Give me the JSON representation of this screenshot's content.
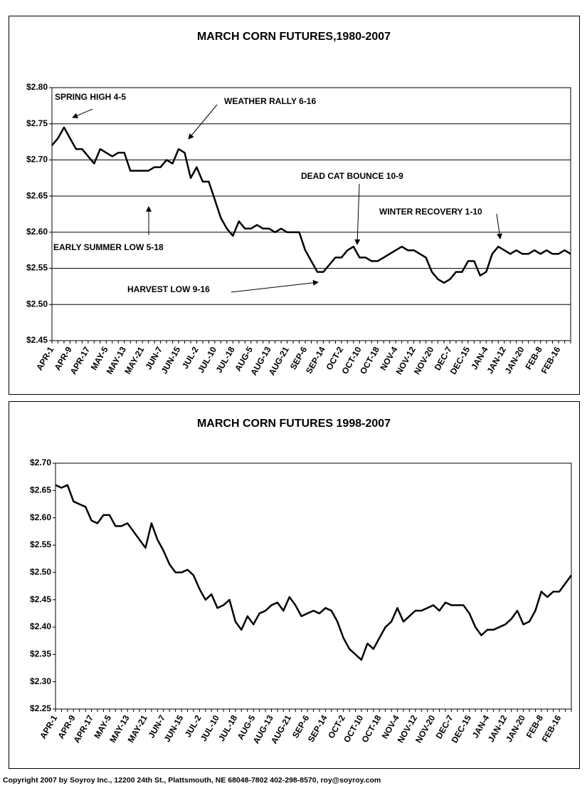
{
  "chart_data": [
    {
      "type": "line",
      "title": "MARCH CORN FUTURES,1980-2007",
      "categories": [
        "APR-1",
        null,
        null,
        "APR-9",
        null,
        null,
        "APR-17",
        null,
        null,
        "MAY-5",
        null,
        null,
        "MAY-13",
        null,
        null,
        "MAY-21",
        null,
        null,
        "JUN-7",
        null,
        null,
        "JUN-15",
        null,
        null,
        "JUL-2",
        null,
        null,
        "JUL-10",
        null,
        null,
        "JUL-18",
        null,
        null,
        "AUG-5",
        null,
        null,
        "AUG-13",
        null,
        null,
        "AUG-21",
        null,
        null,
        "SEP-6",
        null,
        null,
        "SEP-14",
        null,
        null,
        "OCT-2",
        null,
        null,
        "OCT-10",
        null,
        null,
        "OCT-18",
        null,
        null,
        "NOV-4",
        null,
        null,
        "NOV-12",
        null,
        null,
        "NOV-20",
        null,
        null,
        "DEC-7",
        null,
        null,
        "DEC-15",
        null,
        null,
        "JAN-4",
        null,
        null,
        "JAN-12",
        null,
        null,
        "JAN-20",
        null,
        null,
        "FEB-8",
        null,
        null,
        "FEB-16",
        null,
        null
      ],
      "series": [
        {
          "name": "March corn",
          "color": "#000000",
          "values": [
            2.72,
            2.73,
            2.745,
            2.73,
            2.715,
            2.715,
            2.705,
            2.695,
            2.715,
            2.71,
            2.705,
            2.71,
            2.71,
            2.685,
            2.685,
            2.685,
            2.685,
            2.69,
            2.69,
            2.7,
            2.695,
            2.715,
            2.71,
            2.675,
            2.69,
            2.67,
            2.67,
            2.645,
            2.62,
            2.605,
            2.595,
            2.615,
            2.605,
            2.605,
            2.61,
            2.605,
            2.605,
            2.6,
            2.605,
            2.6,
            2.6,
            2.6,
            2.575,
            2.56,
            2.545,
            2.545,
            2.555,
            2.565,
            2.565,
            2.575,
            2.58,
            2.565,
            2.565,
            2.56,
            2.56,
            2.565,
            2.57,
            2.575,
            2.58,
            2.575,
            2.575,
            2.57,
            2.565,
            2.545,
            2.535,
            2.53,
            2.535,
            2.545,
            2.545,
            2.56,
            2.56,
            2.54,
            2.545,
            2.57,
            2.58,
            2.575,
            2.57,
            2.575,
            2.57,
            2.57,
            2.575,
            2.57,
            2.575,
            2.57,
            2.57,
            2.575,
            2.57
          ]
        }
      ],
      "ylim": [
        2.45,
        2.8
      ],
      "yticks": [
        {
          "value": 2.45,
          "label": "$2.45"
        },
        {
          "value": 2.5,
          "label": "$2.50"
        },
        {
          "value": 2.55,
          "label": "$2.55"
        },
        {
          "value": 2.6,
          "label": "$2.60"
        },
        {
          "value": 2.65,
          "label": "$2.65"
        },
        {
          "value": 2.7,
          "label": "$2.70"
        },
        {
          "value": 2.75,
          "label": "$2.75"
        },
        {
          "value": 2.8,
          "label": "$2.80"
        }
      ],
      "grid": true,
      "annotations": [
        "SPRING HIGH 4-5",
        "WEATHER RALLY 6-16",
        "DEAD CAT BOUNCE 10-9",
        "WINTER RECOVERY 1-10",
        "EARLY SUMMER LOW 5-18",
        "HARVEST LOW  9-16"
      ]
    },
    {
      "type": "line",
      "title": "MARCH CORN FUTURES  1998-2007",
      "categories": [
        "APR-1",
        null,
        null,
        "APR-9",
        null,
        null,
        "APR-17",
        null,
        null,
        "MAY-5",
        null,
        null,
        "MAY-13",
        null,
        null,
        "MAY-21",
        null,
        null,
        "JUN-7",
        null,
        null,
        "JUN-15",
        null,
        null,
        "JUL-2",
        null,
        null,
        "JUL-10",
        null,
        null,
        "JUL-18",
        null,
        null,
        "AUG-5",
        null,
        null,
        "AUG-13",
        null,
        null,
        "AUG-21",
        null,
        null,
        "SEP-6",
        null,
        null,
        "SEP-14",
        null,
        null,
        "OCT-2",
        null,
        null,
        "OCT-10",
        null,
        null,
        "OCT-18",
        null,
        null,
        "NOV-4",
        null,
        null,
        "NOV-12",
        null,
        null,
        "NOV-20",
        null,
        null,
        "DEC-7",
        null,
        null,
        "DEC-15",
        null,
        null,
        "JAN-4",
        null,
        null,
        "JAN-12",
        null,
        null,
        "JAN-20",
        null,
        null,
        "FEB-8",
        null,
        null,
        "FEB-16",
        null,
        null
      ],
      "series": [
        {
          "name": "March corn",
          "color": "#000000",
          "values": [
            2.66,
            2.655,
            2.66,
            2.63,
            2.625,
            2.62,
            2.595,
            2.59,
            2.605,
            2.605,
            2.585,
            2.585,
            2.59,
            2.575,
            2.56,
            2.545,
            2.59,
            2.56,
            2.54,
            2.515,
            2.5,
            2.5,
            2.505,
            2.495,
            2.47,
            2.45,
            2.46,
            2.435,
            2.44,
            2.45,
            2.41,
            2.395,
            2.42,
            2.405,
            2.425,
            2.43,
            2.44,
            2.445,
            2.43,
            2.455,
            2.44,
            2.42,
            2.425,
            2.43,
            2.425,
            2.435,
            2.43,
            2.41,
            2.38,
            2.36,
            2.35,
            2.34,
            2.37,
            2.36,
            2.38,
            2.4,
            2.41,
            2.435,
            2.41,
            2.42,
            2.43,
            2.43,
            2.435,
            2.44,
            2.43,
            2.445,
            2.44,
            2.44,
            2.44,
            2.425,
            2.4,
            2.385,
            2.395,
            2.395,
            2.4,
            2.405,
            2.415,
            2.43,
            2.405,
            2.41,
            2.43,
            2.465,
            2.455,
            2.465,
            2.465,
            2.48,
            2.495
          ]
        }
      ],
      "ylim": [
        2.25,
        2.7
      ],
      "yticks": [
        {
          "value": 2.25,
          "label": "$2.25"
        },
        {
          "value": 2.3,
          "label": "$2.30"
        },
        {
          "value": 2.35,
          "label": "$2.35"
        },
        {
          "value": 2.4,
          "label": "$2.40"
        },
        {
          "value": 2.45,
          "label": "$2.45"
        },
        {
          "value": 2.5,
          "label": "$2.50"
        },
        {
          "value": 2.55,
          "label": "$2.55"
        },
        {
          "value": 2.6,
          "label": "$2.60"
        },
        {
          "value": 2.65,
          "label": "$2.65"
        },
        {
          "value": 2.7,
          "label": "$2.70"
        }
      ],
      "grid": false
    }
  ],
  "footer": "Copyright 2007 by Soyroy Inc., 12200 24th St., Plattsmouth, NE 68048-7802 402-298-8570, roy@soyroy.com"
}
